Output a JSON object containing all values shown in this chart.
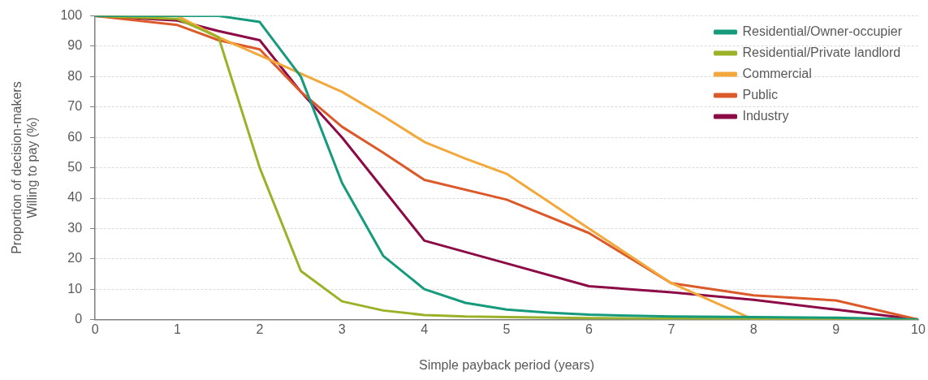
{
  "chart_data": {
    "type": "line",
    "xlabel": "Simple payback period (years)",
    "ylabel": "Proportion of decision-makers\nWilling to pay (%)",
    "xlim": [
      0,
      10
    ],
    "xticks": [
      0,
      1,
      2,
      3,
      4,
      5,
      6,
      7,
      8,
      9,
      10
    ],
    "ylim": [
      0,
      100
    ],
    "yticks": [
      0,
      10,
      20,
      30,
      40,
      50,
      60,
      70,
      80,
      90,
      100
    ],
    "grid": "y",
    "legend": "top right",
    "marker": "none",
    "line_style": "solid",
    "series": [
      {
        "name": "Residential/Owner-occupier",
        "color": "#159b7c",
        "x": [
          0,
          1,
          1.5,
          2,
          2.5,
          3,
          3.5,
          4,
          4.5,
          5,
          5.5,
          6,
          7,
          8,
          9,
          10
        ],
        "values": [
          100,
          100,
          100,
          98,
          80,
          45,
          21,
          10,
          5.5,
          3.3,
          2.3,
          1.6,
          1,
          0.8,
          0.6,
          0
        ]
      },
      {
        "name": "Residential/Private landlord",
        "color": "#9bb127",
        "x": [
          0,
          1,
          1.5,
          2,
          2.5,
          3,
          3.5,
          4,
          4.5,
          5,
          6,
          7,
          8,
          9,
          10
        ],
        "values": [
          100,
          99,
          93,
          50,
          16,
          6,
          3,
          1.5,
          1,
          0.8,
          0.5,
          0.3,
          0.3,
          0.2,
          0
        ]
      },
      {
        "name": "Commercial",
        "color": "#f2a83a",
        "x": [
          0,
          1,
          1.5,
          2,
          2.5,
          3,
          3.5,
          4,
          4.5,
          5,
          6,
          7,
          8,
          9,
          10
        ],
        "values": [
          100,
          100,
          93,
          87,
          81,
          75,
          67,
          58.5,
          53,
          48,
          30,
          12,
          0,
          0,
          0
        ]
      },
      {
        "name": "Public",
        "color": "#dc5a2a",
        "x": [
          0,
          1,
          1.5,
          2,
          2.5,
          3,
          3.5,
          4,
          5,
          6,
          7,
          8,
          9,
          10
        ],
        "values": [
          100,
          97,
          92,
          89,
          75,
          63.5,
          55,
          46,
          39.5,
          28.5,
          12,
          8,
          6.3,
          0
        ]
      },
      {
        "name": "Industry",
        "color": "#8c0a46",
        "x": [
          0,
          1,
          1.5,
          2,
          2.5,
          3,
          3.5,
          4,
          5,
          6,
          7,
          8,
          9,
          10
        ],
        "values": [
          100,
          98.5,
          95,
          92,
          75,
          60,
          43,
          26,
          18.5,
          11,
          9,
          6.5,
          3.3,
          0
        ]
      }
    ]
  }
}
